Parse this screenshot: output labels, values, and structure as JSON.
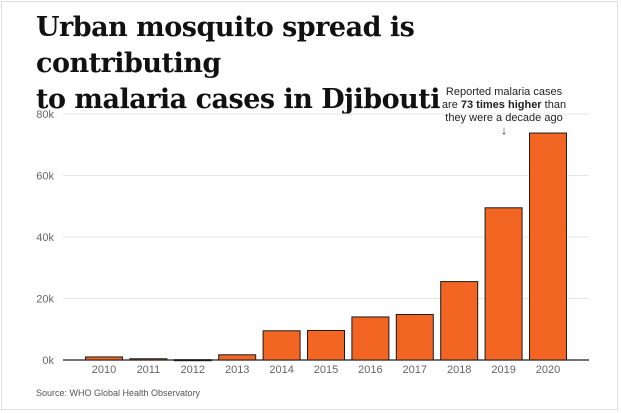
{
  "title": {
    "line1": "Urban mosquito spread is contributing",
    "line2": "to malaria cases in Djibouti"
  },
  "annotation": {
    "line1": "Reported malaria cases",
    "line2_pre": "are ",
    "line2_bold": "73 times higher",
    "line2_post": " than",
    "line3": "they were a decade ago",
    "arrow": "↓"
  },
  "source": "Source: WHO Global Health Observatory",
  "chart_data": {
    "type": "bar",
    "categories": [
      "2010",
      "2011",
      "2012",
      "2013",
      "2014",
      "2015",
      "2016",
      "2017",
      "2018",
      "2019",
      "2020"
    ],
    "values": [
      1000,
      400,
      100,
      1700,
      9500,
      9600,
      14000,
      14800,
      25500,
      49500,
      73800
    ],
    "ylim": [
      0,
      80000
    ],
    "yticks": [
      0,
      20000,
      40000,
      60000,
      80000
    ],
    "ytick_labels": [
      "0k",
      "20k",
      "40k",
      "60k",
      "80k"
    ],
    "bar_color": "#f26522",
    "xlabel": "",
    "ylabel": ""
  }
}
